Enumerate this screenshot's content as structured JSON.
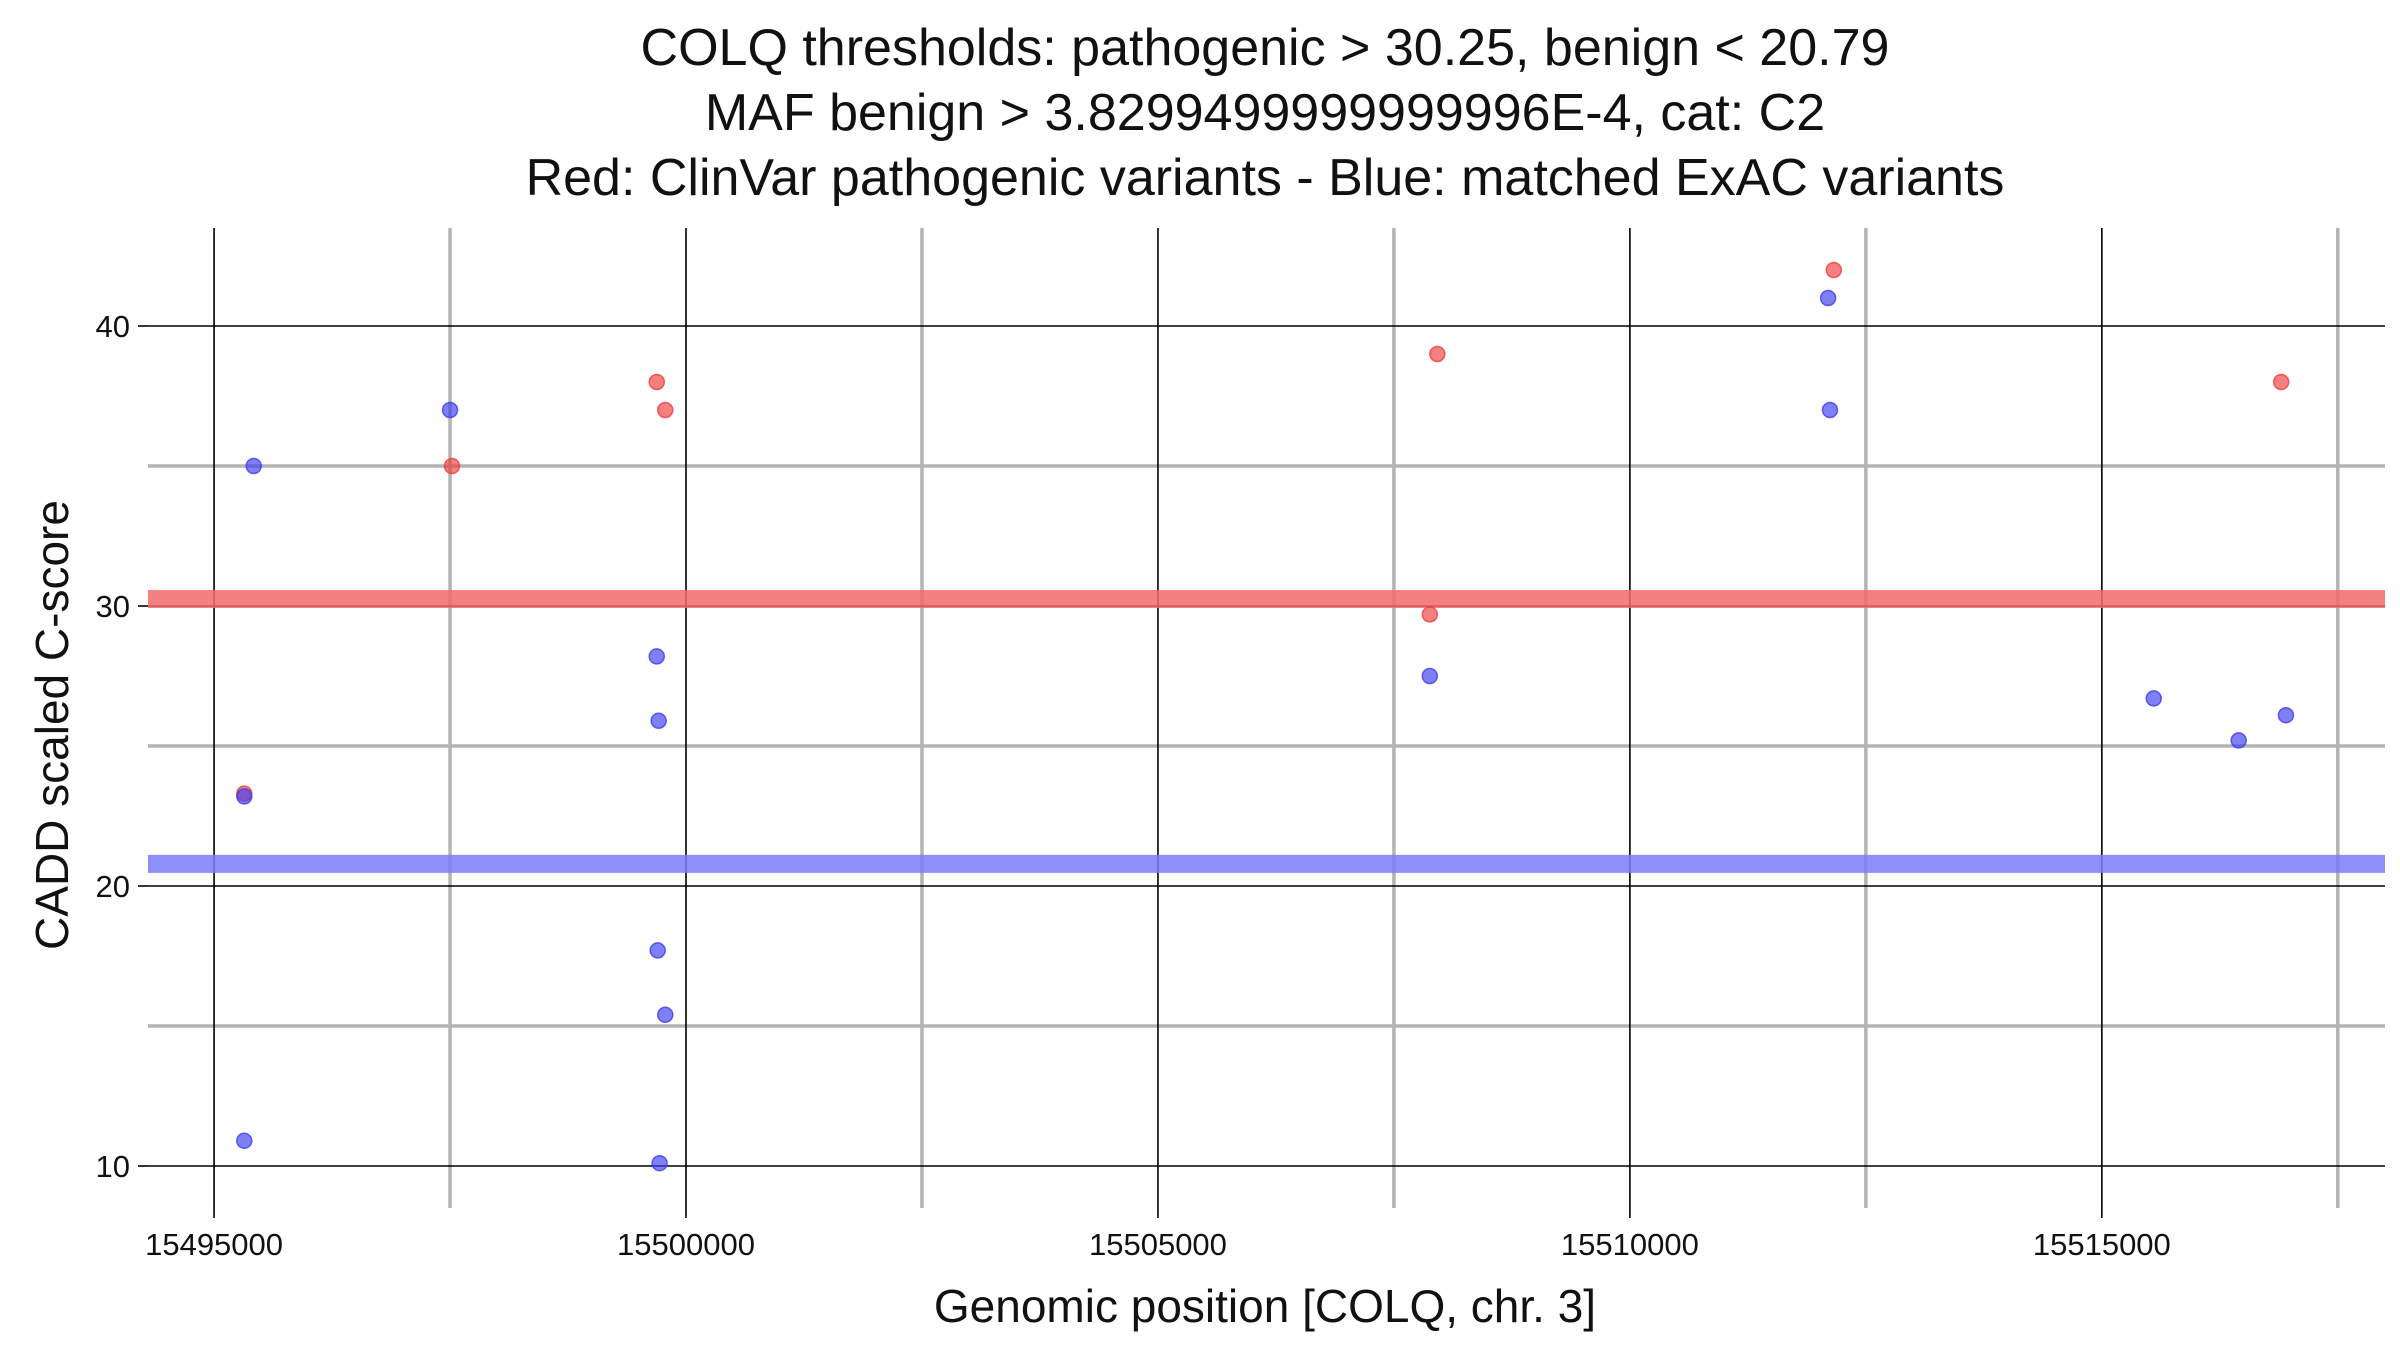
{
  "chart_data": {
    "type": "scatter",
    "title_lines": [
      "COLQ thresholds: pathogenic > 30.25, benign < 20.79",
      "MAF benign > 3.8299499999999996E-4, cat: C2",
      "Red: ClinVar pathogenic variants - Blue: matched ExAC variants"
    ],
    "xlabel": "Genomic position [COLQ, chr. 3]",
    "ylabel": "CADD scaled C-score",
    "xlim": [
      15494300,
      15518000
    ],
    "ylim": [
      8.5,
      43.5
    ],
    "x_ticks": [
      15495000,
      15500000,
      15505000,
      15510000,
      15515000
    ],
    "x_tick_labels": [
      "15495000",
      "15500000",
      "15505000",
      "15510000",
      "15515000"
    ],
    "x_minor_grid": [
      15497500,
      15502500,
      15507500,
      15512500,
      15517500
    ],
    "y_ticks": [
      10,
      20,
      30,
      40
    ],
    "y_tick_labels": [
      "10",
      "20",
      "30",
      "40"
    ],
    "y_minor_grid": [
      15,
      25,
      35
    ],
    "grid": true,
    "thresholds": {
      "pathogenic": {
        "value": 30.25,
        "color": "#f26b6b"
      },
      "benign": {
        "value": 20.79,
        "color": "#7b7bf7"
      }
    },
    "series": [
      {
        "color": "#f03c3c",
        "points": [
          {
            "x": 15495320,
            "y": 23.3
          },
          {
            "x": 15497520,
            "y": 35.0
          },
          {
            "x": 15499690,
            "y": 38.0
          },
          {
            "x": 15499780,
            "y": 37.0
          },
          {
            "x": 15507880,
            "y": 29.7
          },
          {
            "x": 15507960,
            "y": 39.0
          },
          {
            "x": 15512160,
            "y": 42.0
          },
          {
            "x": 15516900,
            "y": 38.0
          }
        ]
      },
      {
        "color": "#3c3cf0",
        "points": [
          {
            "x": 15495320,
            "y": 10.9
          },
          {
            "x": 15495320,
            "y": 23.2
          },
          {
            "x": 15495420,
            "y": 35.0
          },
          {
            "x": 15497500,
            "y": 37.0
          },
          {
            "x": 15499690,
            "y": 28.2
          },
          {
            "x": 15499710,
            "y": 25.9
          },
          {
            "x": 15499700,
            "y": 17.7
          },
          {
            "x": 15499780,
            "y": 15.4
          },
          {
            "x": 15499720,
            "y": 10.1
          },
          {
            "x": 15507880,
            "y": 27.5
          },
          {
            "x": 15512100,
            "y": 41.0
          },
          {
            "x": 15512120,
            "y": 37.0
          },
          {
            "x": 15515550,
            "y": 26.7
          },
          {
            "x": 15516450,
            "y": 25.2
          },
          {
            "x": 15516950,
            "y": 26.1
          }
        ]
      }
    ]
  }
}
